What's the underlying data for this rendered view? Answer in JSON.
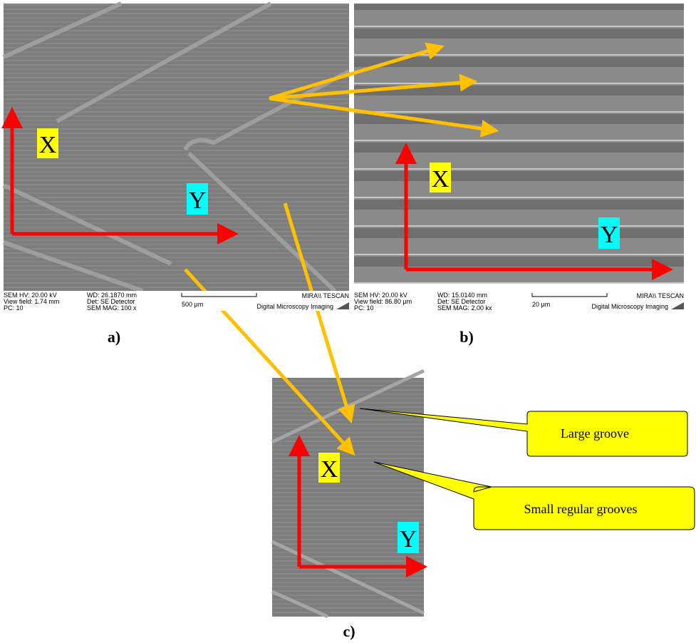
{
  "panels": [
    {
      "label": "a)",
      "axis_x": "X",
      "axis_y": "Y",
      "info": {
        "col1": [
          "SEM HV: 20.00 kV",
          "View field: 1.74 mm",
          "PC:  10"
        ],
        "col2": [
          "WD: 26.1870 mm",
          "Det: SE Detector",
          "SEM MAG: 100 x"
        ],
        "scale": "500 μm",
        "brand": "MIRA\\\\ TESCAN",
        "footer": "Digital Microscopy Imaging"
      }
    },
    {
      "label": "b)",
      "axis_x": "X",
      "axis_y": "Y",
      "info": {
        "col1": [
          "SEM HV: 20.00 kV",
          "View field: 86.80 μm",
          "PC:  10"
        ],
        "col2": [
          "WD: 15.0140 mm",
          "Det: SE Detector",
          "SEM MAG: 2.00 kx"
        ],
        "scale": "20 μm",
        "brand": "MIRA\\\\ TESCAN",
        "footer": "Digital Microscopy Imaging"
      }
    },
    {
      "label": "c)",
      "axis_x": "X",
      "axis_y": "Y"
    }
  ],
  "callouts": [
    "Large groove",
    "Small regular grooves"
  ]
}
